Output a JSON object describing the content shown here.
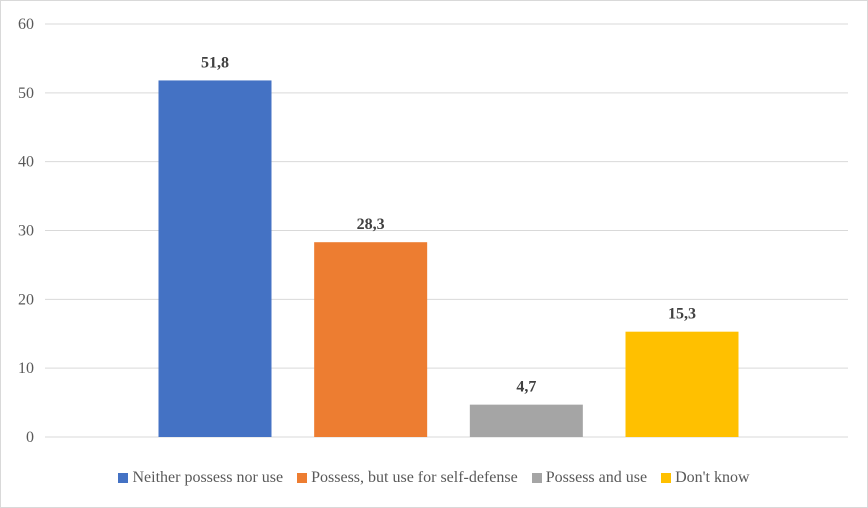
{
  "chart_data": {
    "type": "bar",
    "title": "",
    "xlabel": "",
    "ylabel": "",
    "ylim": [
      0,
      60
    ],
    "yticks": [
      "0",
      "10",
      "20",
      "30",
      "40",
      "50",
      "60"
    ],
    "grid": true,
    "legend_position": "bottom",
    "series": [
      {
        "name": "Neither possess nor use",
        "value": 51.8,
        "label": "51,8",
        "color": "#4472C4"
      },
      {
        "name": "Possess, but use for self-defense",
        "value": 28.3,
        "label": "28,3",
        "color": "#ED7D31"
      },
      {
        "name": "Possess and use",
        "value": 4.7,
        "label": "4,7",
        "color": "#A5A5A5"
      },
      {
        "name": "Don't know",
        "value": 15.3,
        "label": "15,3",
        "color": "#FFC000"
      }
    ]
  }
}
